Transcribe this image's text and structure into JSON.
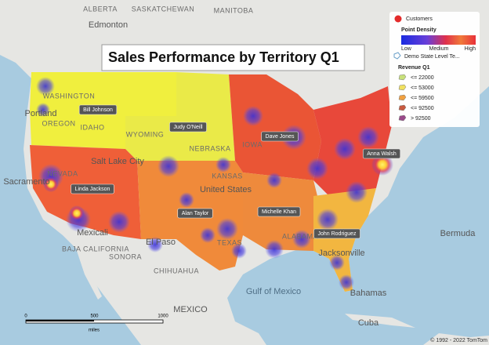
{
  "title": "Sales Performance by Territory Q1",
  "legend": {
    "customers": "Customers",
    "density_title": "Point Density",
    "density_low": "Low",
    "density_medium": "Medium",
    "density_high": "High",
    "territory_layer": "Demo State Level Te...",
    "revenue_title": "Revenue Q1",
    "revenue_classes": [
      "<= 22000",
      "<= 53000",
      "<= 59500",
      "<= 92500",
      "> 92500"
    ]
  },
  "territories": [
    "Bill Johnson",
    "Judy O'Neill",
    "Dave Jones",
    "Anna Walsh",
    "Linda Jackson",
    "Alan Taylor",
    "Michelle Khan",
    "John Rodriguez"
  ],
  "place_labels": [
    "ALBERTA",
    "SASKATCHEWAN",
    "MANITOBA",
    "Edmonton",
    "WASHINGTON",
    "Portland",
    "OREGON",
    "IDAHO",
    "WYOMING",
    "NEBRASKA",
    "Salt Lake City",
    "NEVADA",
    "Sacramento",
    "KANSAS",
    "IOWA",
    "United States",
    "Mexicali",
    "BAJA CALIFORNIA",
    "SONORA",
    "El Paso",
    "TEXAS",
    "CHIHUAHUA",
    "ALABAMA",
    "Jacksonville",
    "Gulf of Mexico",
    "MEXICO",
    "Bermuda",
    "Bahamas",
    "Cuba"
  ],
  "scale_bar": {
    "ticks": [
      0,
      500,
      1000
    ],
    "unit": "miles"
  },
  "copyright": "© 1992 - 2022 TomTom"
}
